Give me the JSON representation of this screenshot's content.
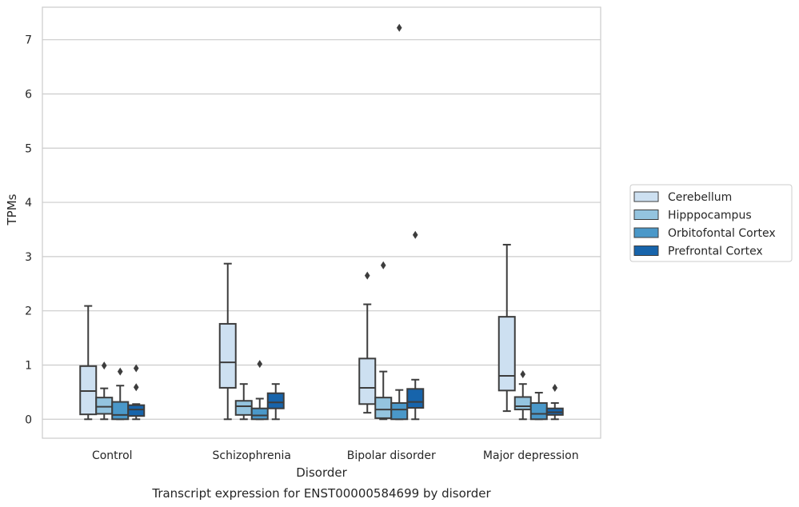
{
  "chart_data": {
    "type": "boxplot",
    "title": "Transcript expression for ENST00000584699 by disorder",
    "xlabel": "Disorder",
    "ylabel": "TPMs",
    "ylim": [
      -0.35,
      7.6
    ],
    "yticks": [
      0,
      1,
      2,
      3,
      4,
      5,
      6,
      7
    ],
    "grid": "horizontal",
    "legend_position": "right",
    "categories": [
      "Control",
      "Schizophrenia",
      "Bipolar disorder",
      "Major depression"
    ],
    "series": [
      {
        "name": "Cerebellum",
        "color": "#cde0f1",
        "boxes": [
          {
            "whislo": 0.0,
            "q1": 0.09,
            "med": 0.52,
            "q3": 0.98,
            "whishi": 2.09,
            "fliers": []
          },
          {
            "whislo": 0.0,
            "q1": 0.58,
            "med": 1.05,
            "q3": 1.76,
            "whishi": 2.87,
            "fliers": []
          },
          {
            "whislo": 0.12,
            "q1": 0.28,
            "med": 0.58,
            "q3": 1.12,
            "whishi": 2.12,
            "fliers": [
              2.65
            ]
          },
          {
            "whislo": 0.15,
            "q1": 0.53,
            "med": 0.8,
            "q3": 1.89,
            "whishi": 3.22,
            "fliers": []
          }
        ]
      },
      {
        "name": "Hipppocampus",
        "color": "#94c4df",
        "boxes": [
          {
            "whislo": 0.0,
            "q1": 0.1,
            "med": 0.23,
            "q3": 0.4,
            "whishi": 0.57,
            "fliers": [
              0.99
            ]
          },
          {
            "whislo": 0.0,
            "q1": 0.08,
            "med": 0.24,
            "q3": 0.34,
            "whishi": 0.65,
            "fliers": []
          },
          {
            "whislo": 0.0,
            "q1": 0.02,
            "med": 0.18,
            "q3": 0.4,
            "whishi": 0.88,
            "fliers": [
              2.84
            ]
          },
          {
            "whislo": 0.0,
            "q1": 0.18,
            "med": 0.24,
            "q3": 0.41,
            "whishi": 0.65,
            "fliers": [
              0.83
            ]
          }
        ]
      },
      {
        "name": "Orbitofontal Cortex",
        "color": "#4a98c9",
        "boxes": [
          {
            "whislo": 0.0,
            "q1": 0.0,
            "med": 0.08,
            "q3": 0.32,
            "whishi": 0.62,
            "fliers": [
              0.88
            ]
          },
          {
            "whislo": 0.0,
            "q1": 0.0,
            "med": 0.07,
            "q3": 0.2,
            "whishi": 0.38,
            "fliers": [
              1.02
            ]
          },
          {
            "whislo": 0.0,
            "q1": 0.0,
            "med": 0.18,
            "q3": 0.3,
            "whishi": 0.54,
            "fliers": [
              7.22
            ]
          },
          {
            "whislo": 0.0,
            "q1": 0.0,
            "med": 0.1,
            "q3": 0.3,
            "whishi": 0.49,
            "fliers": []
          }
        ]
      },
      {
        "name": "Prefrontal Cortex",
        "color": "#1764ab",
        "boxes": [
          {
            "whislo": 0.0,
            "q1": 0.06,
            "med": 0.18,
            "q3": 0.26,
            "whishi": 0.28,
            "fliers": [
              0.94,
              0.59
            ]
          },
          {
            "whislo": 0.0,
            "q1": 0.2,
            "med": 0.31,
            "q3": 0.48,
            "whishi": 0.65,
            "fliers": []
          },
          {
            "whislo": 0.0,
            "q1": 0.21,
            "med": 0.32,
            "q3": 0.56,
            "whishi": 0.73,
            "fliers": [
              3.4
            ]
          },
          {
            "whislo": 0.0,
            "q1": 0.08,
            "med": 0.13,
            "q3": 0.2,
            "whishi": 0.3,
            "fliers": [
              0.58
            ]
          }
        ]
      }
    ]
  }
}
